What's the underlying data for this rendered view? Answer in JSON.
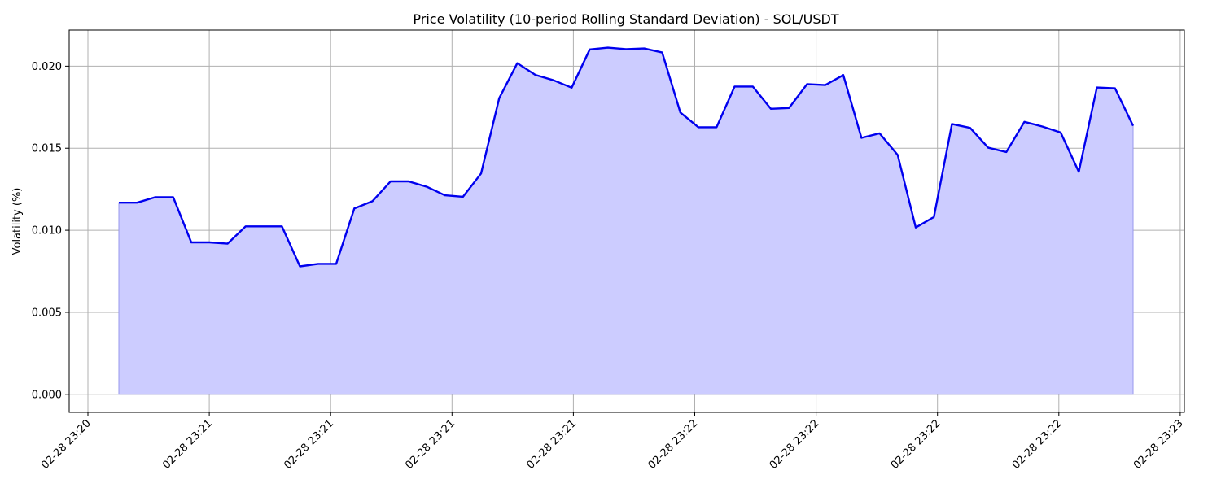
{
  "chart_data": {
    "type": "area",
    "title": "Price Volatility (10-period Rolling Standard Deviation) - SOL/USDT",
    "ylabel": "Volatility (%)",
    "xlabel": "",
    "ylim": [
      -0.0011,
      0.0222
    ],
    "yticks": [
      "0.000",
      "0.005",
      "0.010",
      "0.015",
      "0.020"
    ],
    "ytick_values": [
      0.0,
      0.005,
      0.01,
      0.015,
      0.02
    ],
    "xticks": [
      "02-28 23:20",
      "02-28 23:21",
      "02-28 23:21",
      "02-28 23:21",
      "02-28 23:21",
      "02-28 23:22",
      "02-28 23:22",
      "02-28 23:22",
      "02-28 23:22",
      "02-28 23:23"
    ],
    "grid": true,
    "colors": {
      "line": "#0000ee",
      "fill": "#ccccff",
      "grid": "#b0b0b0"
    },
    "series": [
      {
        "values": [
          0.01168,
          0.01168,
          0.01201,
          0.01201,
          0.00926,
          0.00926,
          0.00918,
          0.01024,
          0.01024,
          0.01024,
          0.0078,
          0.00795,
          0.00795,
          0.01133,
          0.01177,
          0.01298,
          0.01298,
          0.01265,
          0.01213,
          0.01204,
          0.01346,
          0.01805,
          0.02018,
          0.01947,
          0.01914,
          0.01869,
          0.02102,
          0.02113,
          0.02104,
          0.02108,
          0.02083,
          0.01718,
          0.01628,
          0.01628,
          0.01876,
          0.01876,
          0.0174,
          0.01745,
          0.01891,
          0.01885,
          0.01946,
          0.01563,
          0.01591,
          0.01459,
          0.01017,
          0.01081,
          0.01648,
          0.01624,
          0.01503,
          0.01477,
          0.01661,
          0.01632,
          0.01596,
          0.01356,
          0.0187,
          0.01865,
          0.01637
        ]
      }
    ]
  }
}
